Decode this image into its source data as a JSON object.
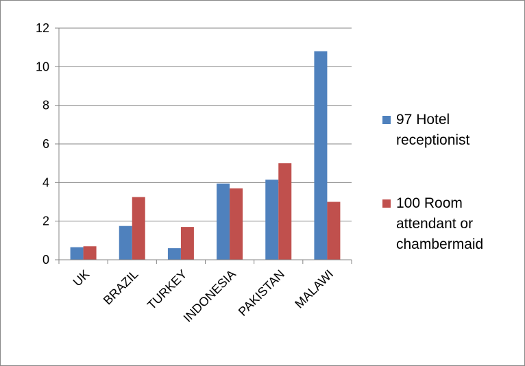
{
  "chart_data": {
    "type": "bar",
    "title": "",
    "xlabel": "",
    "ylabel": "",
    "categories": [
      "UK",
      "BRAZIL",
      "TURKEY",
      "INDONESIA",
      "PAKISTAN",
      "MALAWI"
    ],
    "series": [
      {
        "name": "97 Hotel receptionist",
        "legend_lines": [
          "97 Hotel",
          "receptionist"
        ],
        "color": "#4F81BD",
        "values": [
          0.65,
          1.75,
          0.6,
          3.95,
          4.15,
          10.8
        ]
      },
      {
        "name": "100 Room attendant or chambermaid",
        "legend_lines": [
          "100 Room",
          "attendant or",
          "chambermaid"
        ],
        "color": "#C0504D",
        "values": [
          0.7,
          3.25,
          1.7,
          3.7,
          5.0,
          3.0
        ]
      }
    ],
    "ylim": [
      0,
      12
    ],
    "yticks": [
      0,
      2,
      4,
      6,
      8,
      10,
      12
    ],
    "grid": true,
    "legend_position": "right"
  }
}
